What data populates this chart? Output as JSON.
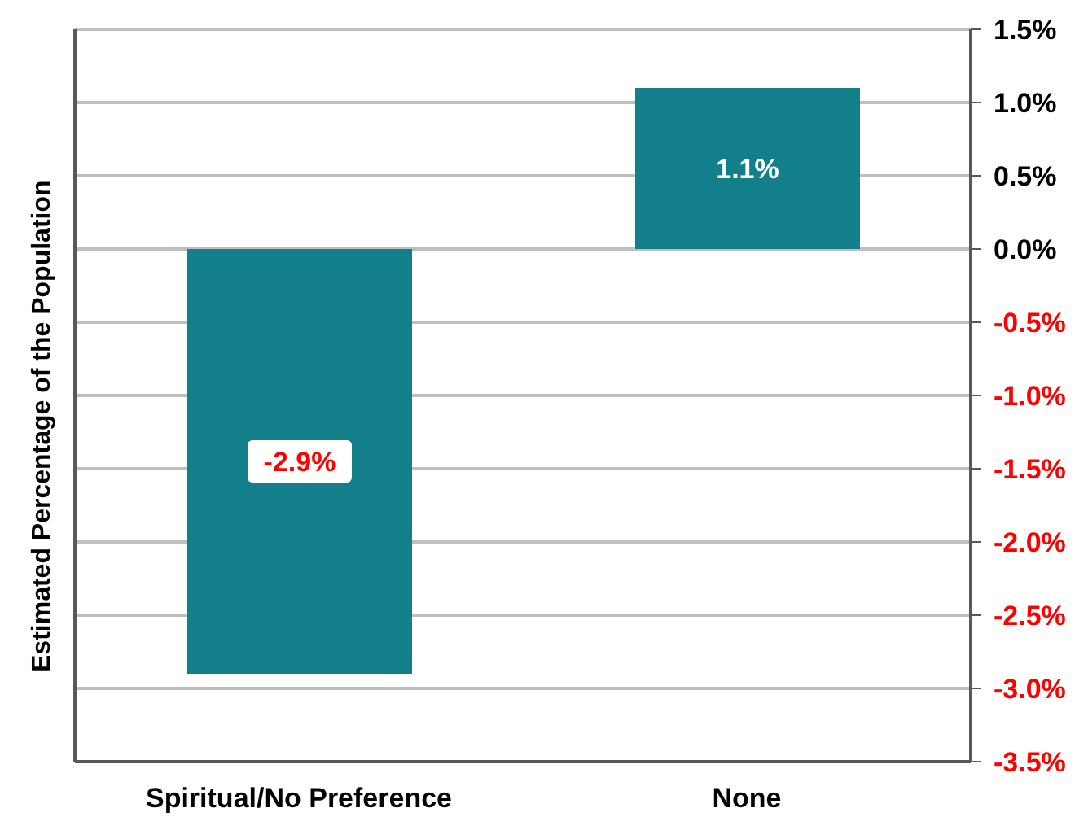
{
  "chart_data": {
    "type": "bar",
    "ylabel": "Estimated Percentage of the Population",
    "categories": [
      "Spiritual/No Preference",
      "None"
    ],
    "values": [
      -2.9,
      1.1
    ],
    "color": "#127f8a",
    "ylim": [
      -3.5,
      1.5
    ],
    "yticks": [
      {
        "value": 1.5,
        "label": "1.5%"
      },
      {
        "value": 1.0,
        "label": "1.0%"
      },
      {
        "value": 0.5,
        "label": "0.5%"
      },
      {
        "value": 0,
        "label": "0.0%"
      },
      {
        "value": -0.5,
        "label": "-0.5%"
      },
      {
        "value": -1.0,
        "label": "-1.0%"
      },
      {
        "value": -1.5,
        "label": "-1.5%"
      },
      {
        "value": -2.0,
        "label": "-2.0%"
      },
      {
        "value": -2.5,
        "label": "-2.5%"
      },
      {
        "value": -3.0,
        "label": "-3.0%"
      },
      {
        "value": -3.5,
        "label": "-3.5%"
      }
    ],
    "value_labels": [
      "-2.9%",
      "1.1%"
    ],
    "grid": "y"
  }
}
